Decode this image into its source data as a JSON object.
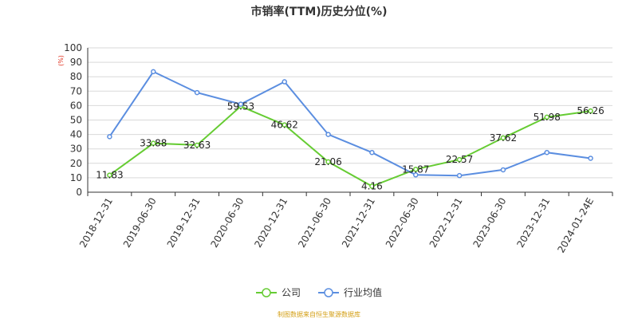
{
  "chart_data": {
    "type": "line",
    "title": "市销率(TTM)历史分位(%)",
    "ylabel": "(%)",
    "ylim": [
      0,
      100
    ],
    "yticks": [
      0,
      10,
      20,
      30,
      40,
      50,
      60,
      70,
      80,
      90,
      100
    ],
    "grid": true,
    "legend_position": "bottom",
    "categories": [
      "2018-12-31",
      "2019-06-30",
      "2019-12-31",
      "2020-06-30",
      "2020-12-31",
      "2021-06-30",
      "2021-12-31",
      "2022-06-30",
      "2022-12-31",
      "2023-06-30",
      "2023-12-31",
      "2024-01-24E"
    ],
    "series": [
      {
        "name": "公司",
        "color": "#66cc33",
        "labels_shown": true,
        "values": [
          11.83,
          33.88,
          32.63,
          59.53,
          46.62,
          21.06,
          4.16,
          15.87,
          22.57,
          37.62,
          51.98,
          56.26
        ]
      },
      {
        "name": "行业均值",
        "color": "#5b8ee0",
        "labels_shown": false,
        "values": [
          38.5,
          83.5,
          69,
          61,
          76.5,
          40,
          27.5,
          12,
          11.5,
          15.5,
          27.5,
          23.5
        ]
      }
    ],
    "source_note": "制图数据来自恒生聚源数据库"
  }
}
